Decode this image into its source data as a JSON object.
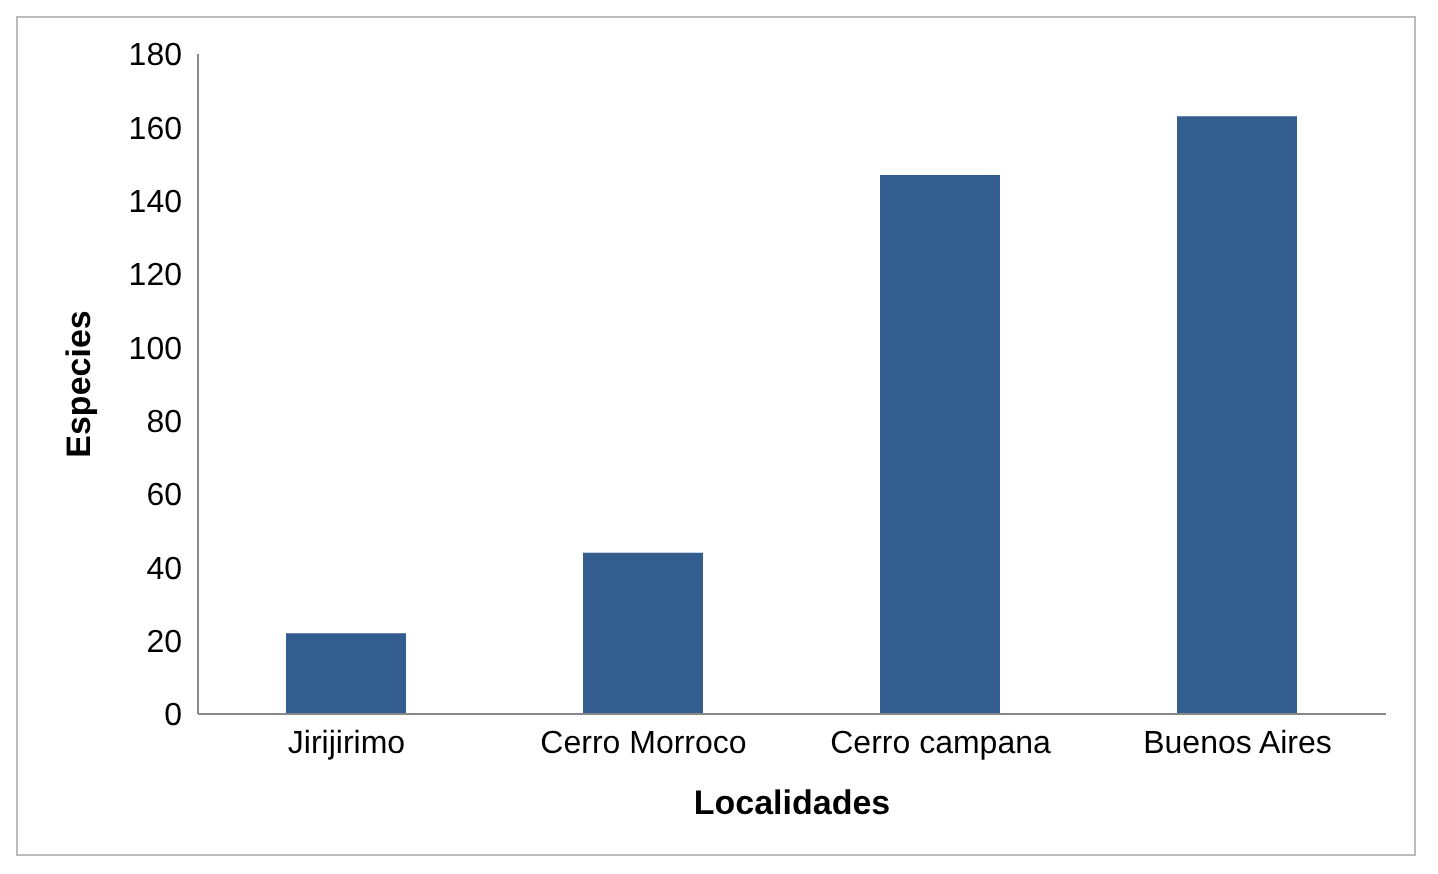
{
  "chart_data": {
    "type": "bar",
    "xlabel": "Localidades",
    "ylabel": "Especies",
    "categories": [
      "Jirijirimo",
      "Cerro Morroco",
      "Cerro campana",
      "Buenos Aires"
    ],
    "values": [
      22,
      44,
      147,
      163
    ],
    "color": "#325d8e",
    "ylim": [
      0,
      180
    ],
    "yticks": [
      0,
      20,
      40,
      60,
      80,
      100,
      120,
      140,
      160,
      180
    ],
    "grid": false,
    "legend": false
  }
}
